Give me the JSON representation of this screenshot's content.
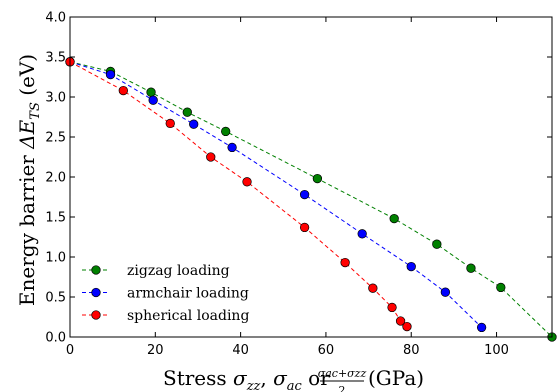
{
  "chart_data": {
    "type": "scatter",
    "title": "",
    "xlabel": {
      "prefix": "Stress ",
      "s1": "σ",
      "s1sub": "zz",
      "sep1": ", ",
      "s2": "σ",
      "s2sub": "ac",
      "mid": " or ",
      "frac_num": "σac+σzz",
      "frac_den": "2",
      "suffix": " (GPa)"
    },
    "ylabel": {
      "prefix": "Energy barrier ",
      "sym": "ΔE",
      "sub": "TS",
      "suffix": " (eV)"
    },
    "xlim": [
      0,
      113
    ],
    "ylim": [
      0,
      4.0
    ],
    "x_ticks": [
      "0",
      "20",
      "40",
      "60",
      "80",
      "100"
    ],
    "x_tick_values": [
      0,
      20,
      40,
      60,
      80,
      100
    ],
    "y_ticks": [
      "0.0",
      "0.5",
      "1.0",
      "1.5",
      "2.0",
      "2.5",
      "3.0",
      "3.5",
      "4.0"
    ],
    "y_tick_values": [
      0,
      0.5,
      1.0,
      1.5,
      2.0,
      2.5,
      3.0,
      3.5,
      4.0
    ],
    "grid": false,
    "legend_position": "bottom-left",
    "series": [
      {
        "name": "zigzag loading",
        "color": "#008000",
        "points": [
          [
            0,
            3.44
          ],
          [
            9.5,
            3.32
          ],
          [
            19,
            3.06
          ],
          [
            27.5,
            2.81
          ],
          [
            36.5,
            2.57
          ],
          [
            58,
            1.98
          ],
          [
            76,
            1.48
          ],
          [
            86,
            1.16
          ],
          [
            94,
            0.86
          ],
          [
            101,
            0.62
          ],
          [
            113,
            0.0
          ]
        ]
      },
      {
        "name": "armchair loading",
        "color": "#0000ff",
        "points": [
          [
            0,
            3.44
          ],
          [
            9.5,
            3.28
          ],
          [
            19.5,
            2.96
          ],
          [
            29,
            2.66
          ],
          [
            38,
            2.37
          ],
          [
            55,
            1.78
          ],
          [
            68.5,
            1.29
          ],
          [
            80,
            0.88
          ],
          [
            88,
            0.56
          ],
          [
            96.5,
            0.12
          ]
        ]
      },
      {
        "name": "spherical loading",
        "color": "#ff0000",
        "points": [
          [
            0,
            3.44
          ],
          [
            12.5,
            3.08
          ],
          [
            23.5,
            2.67
          ],
          [
            33,
            2.25
          ],
          [
            41.5,
            1.94
          ],
          [
            55,
            1.37
          ],
          [
            64.5,
            0.93
          ],
          [
            71,
            0.61
          ],
          [
            75.5,
            0.37
          ],
          [
            77.5,
            0.2
          ],
          [
            79,
            0.13
          ]
        ]
      }
    ]
  }
}
